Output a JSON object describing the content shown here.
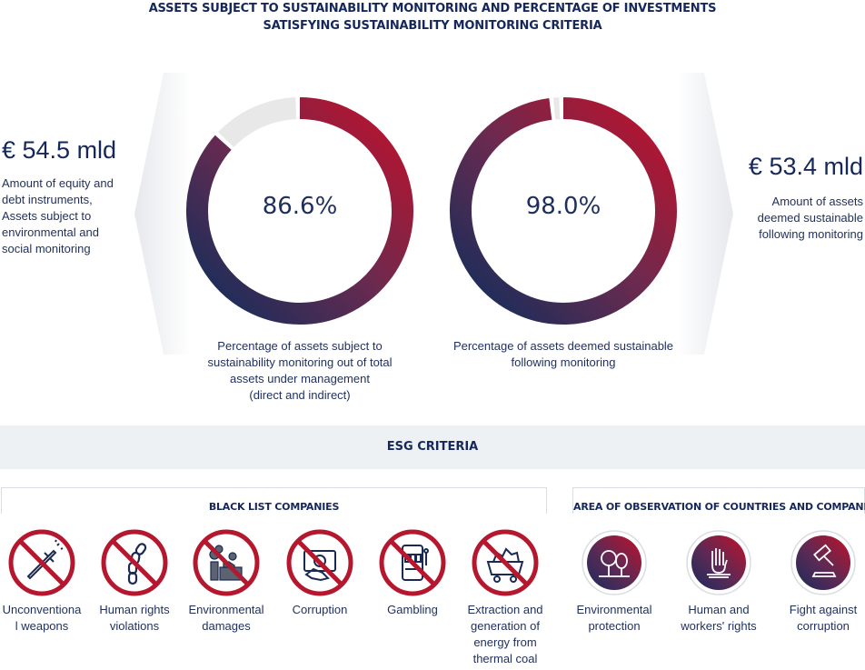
{
  "title": {
    "line1": "ASSETS SUBJECT TO SUSTAINABILITY MONITORING AND PERCENTAGE OF INVESTMENTS",
    "line2": "SATISFYING SUSTAINABILITY MONITORING CRITERIA"
  },
  "left_panel": {
    "amount": "€ 54.5 mld",
    "description": [
      "Amount of equity and",
      "debt instruments,",
      "Assets subject to",
      "environmental and",
      "social monitoring"
    ]
  },
  "right_panel": {
    "amount": "€ 53.4 mld",
    "description": [
      "Amount of assets",
      "deemed sustainable",
      "following monitoring"
    ]
  },
  "rings": [
    {
      "value": 86.6,
      "label": "86.6%",
      "caption": [
        "Percentage of assets subject to",
        "sustainability monitoring out of total",
        "assets under management",
        "(direct and indirect)"
      ]
    },
    {
      "value": 98.0,
      "label": "98.0%",
      "caption": [
        "Percentage of assets deemed sustainable",
        "following monitoring"
      ]
    }
  ],
  "colors": {
    "navy": "#0d2e5c",
    "crimson": "#c0112b",
    "plum": "#6b2a4f",
    "remainder": "#e8e8e8",
    "band": "#eef1f4"
  },
  "esg": {
    "title": "ESG CRITERIA",
    "black_list": {
      "title": "BLACK LIST COMPANIES",
      "items": [
        {
          "label": [
            "Unconventiona",
            "l weapons"
          ],
          "icon": "missile-icon"
        },
        {
          "label": [
            "Human rights",
            "violations"
          ],
          "icon": "chain-icon"
        },
        {
          "label": [
            "Environmental",
            "damages"
          ],
          "icon": "factory-icon"
        },
        {
          "label": [
            "Corruption"
          ],
          "icon": "banknote-icon"
        },
        {
          "label": [
            "Gambling"
          ],
          "icon": "slot-machine-icon"
        },
        {
          "label": [
            "Extraction and",
            "generation of",
            "energy from",
            "thermal coal"
          ],
          "icon": "coal-cart-icon"
        }
      ]
    },
    "observation": {
      "title": "AREA OF OBSERVATION OF COUNTRIES AND COMPANIES",
      "items": [
        {
          "label": [
            "Environmental",
            "protection"
          ],
          "icon": "trees-icon"
        },
        {
          "label": [
            "Human and",
            "workers' rights"
          ],
          "icon": "raised-hand-icon"
        },
        {
          "label": [
            "Fight against",
            "corruption"
          ],
          "icon": "gavel-icon"
        }
      ]
    }
  }
}
